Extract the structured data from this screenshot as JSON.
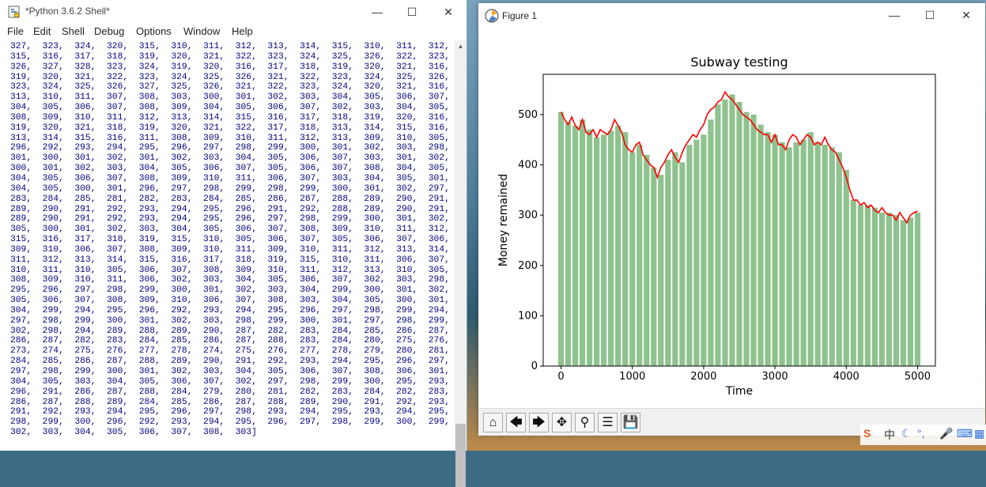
{
  "shell": {
    "title": "*Python 3.6.2 Shell*",
    "menu": [
      "File",
      "Edit",
      "Shell",
      "Debug",
      "Options",
      "Window",
      "Help"
    ],
    "output_lines": [
      "327,  323,  324,  320,  315,  310,  311,  312,  313,  314,  315,  310,  311,  312,  313,  314,",
      "315,  316,  317,  318,  319,  320,  321,  322,  323,  324,  325,  326,  322,  323,  324,  325,",
      "326,  327,  328,  323,  324,  319,  320,  316,  317,  318,  319,  320,  321,  316,  317,  318,",
      "319,  320,  321,  322,  323,  324,  325,  326,  321,  322,  323,  324,  325,  326,  327,  328,",
      "323,  324,  325,  326,  327,  325,  326,  321,  322,  323,  324,  320,  321,  316,  317,  318,",
      "313,  310,  311,  307,  308,  303,  300,  301,  302,  303,  304,  305,  306,  307,  302,  303,",
      "304,  305,  306,  307,  308,  309,  304,  305,  306,  307,  302,  303,  304,  305,  306,  307,",
      "308,  309,  310,  311,  312,  313,  314,  315,  316,  317,  318,  319,  320,  316,  317,  318,",
      "319,  320,  321,  318,  319,  320,  321,  322,  317,  318,  313,  314,  315,  316,  317,  312,",
      "313,  314,  315,  316,  311,  308,  309,  310,  311,  312,  313,  309,  310,  305,  300,  295,",
      "296,  292,  293,  294,  295,  296,  297,  298,  299,  300,  301,  302,  303,  298,  299,  300,",
      "301,  300,  301,  302,  301,  302,  303,  304,  305,  306,  307,  303,  301,  302,  298,  299,",
      "300,  301,  302,  303,  304,  305,  306,  307,  305,  306,  307,  308,  304,  305,  306,  303,",
      "304,  305,  306,  307,  308,  309,  310,  311,  306,  307,  303,  304,  305,  301,  302,  303,",
      "304,  305,  300,  301,  296,  297,  298,  299,  298,  299,  300,  301,  302,  297,  293,  288,",
      "283,  284,  285,  281,  282,  283,  284,  285,  286,  287,  288,  289,  290,  291,  292,  288,",
      "289,  290,  291,  292,  293,  294,  295,  296,  291,  292,  288,  289,  290,  291,  287,  288,",
      "289,  290,  291,  292,  293,  294,  295,  296,  297,  298,  299,  300,  301,  302,  303,  304,",
      "305,  300,  301,  302,  303,  304,  305,  306,  307,  308,  309,  310,  311,  312,  313,  314,",
      "315,  316,  317,  318,  319,  315,  310,  305,  306,  307,  305,  306,  307,  306,  307,  308,",
      "309,  310,  306,  307,  308,  309,  310,  311,  309,  310,  311,  312,  313,  314,  315,  316,",
      "311,  312,  313,  314,  315,  316,  317,  318,  319,  315,  310,  311,  306,  307,  308,  309,",
      "310,  311,  310,  305,  306,  307,  308,  309,  310,  311,  312,  313,  310,  305,  306,  307,",
      "308,  309,  310,  311,  306,  302,  303,  304,  305,  306,  307,  302,  303,  298,  293,  294,",
      "295,  296,  297,  298,  299,  300,  301,  302,  303,  304,  299,  300,  301,  302,  303,  304,",
      "305,  306,  307,  308,  309,  310,  306,  307,  308,  303,  304,  305,  300,  301,  302,  303,",
      "304,  299,  294,  295,  296,  292,  293,  294,  295,  296,  297,  298,  299,  294,  295,  296,",
      "297,  298,  299,  300,  301,  302,  303,  298,  299,  300,  301,  297,  298,  299,  300,  301,",
      "302,  298,  294,  289,  288,  289,  290,  287,  282,  283,  284,  285,  286,  287,  288,  289,",
      "286,  287,  282,  283,  284,  285,  286,  287,  288,  283,  284,  280,  275,  276,  271,  272,",
      "273,  274,  275,  276,  277,  278,  274,  275,  276,  277,  278,  279,  280,  281,  282,  283,",
      "284,  285,  286,  287,  288,  289,  290,  291,  292,  293,  294,  295,  296,  297,  298,  296,",
      "297,  298,  299,  300,  301,  302,  303,  304,  305,  306,  307,  308,  306,  301,  302,  303,",
      "304,  305,  303,  304,  305,  306,  307,  302,  297,  298,  299,  300,  295,  293,  294,  295,",
      "296,  291,  286,  287,  288,  284,  279,  280,  281,  282,  283,  284,  282,  283,  284,  285,",
      "286,  287,  288,  289,  284,  285,  286,  287,  288,  289,  290,  291,  292,  293,  294,  290,",
      "291,  292,  293,  294,  295,  296,  297,  298,  293,  294,  295,  293,  294,  295,  296,  297,",
      "298,  299,  300,  296,  292,  293,  294,  295,  296,  297,  298,  299,  300,  299,  300,  301,",
      "302,  303,  304,  305,  306,  307,  308,  303]"
    ]
  },
  "figure": {
    "title": "Figure 1",
    "toolbar": [
      "home-icon",
      "back-arrow-icon",
      "forward-arrow-icon",
      "pan-icon",
      "zoom-icon",
      "configure-subplots-icon",
      "save-icon"
    ]
  },
  "chart_data": {
    "type": "bar",
    "title": "Subway testing",
    "xlabel": "Time",
    "ylabel": "Money remained",
    "xlim": [
      -250,
      5250
    ],
    "ylim": [
      0,
      580
    ],
    "xticks": [
      0,
      1000,
      2000,
      3000,
      4000,
      5000
    ],
    "yticks": [
      0,
      100,
      200,
      300,
      400,
      500
    ],
    "bar_color": "#8ec28e",
    "line_color": "#ff0000",
    "bar_x": [
      0,
      100,
      200,
      300,
      400,
      500,
      600,
      700,
      800,
      900,
      1000,
      1100,
      1200,
      1300,
      1400,
      1500,
      1600,
      1700,
      1800,
      1900,
      2000,
      2100,
      2200,
      2300,
      2400,
      2500,
      2600,
      2700,
      2800,
      2900,
      3000,
      3100,
      3200,
      3300,
      3400,
      3500,
      3600,
      3700,
      3800,
      3900,
      4000,
      4100,
      4200,
      4300,
      4400,
      4500,
      4600,
      4700,
      4800,
      4900,
      5000
    ],
    "bar_values": [
      505,
      485,
      478,
      490,
      470,
      455,
      460,
      468,
      478,
      465,
      425,
      440,
      420,
      395,
      380,
      410,
      425,
      405,
      440,
      450,
      460,
      490,
      520,
      530,
      540,
      525,
      505,
      500,
      480,
      465,
      460,
      445,
      435,
      445,
      450,
      465,
      445,
      440,
      435,
      425,
      390,
      330,
      320,
      320,
      315,
      305,
      305,
      300,
      290,
      295,
      305
    ],
    "line_points": [
      [
        0,
        505
      ],
      [
        50,
        490
      ],
      [
        100,
        480
      ],
      [
        150,
        495
      ],
      [
        200,
        478
      ],
      [
        250,
        470
      ],
      [
        300,
        490
      ],
      [
        350,
        465
      ],
      [
        400,
        460
      ],
      [
        450,
        470
      ],
      [
        500,
        455
      ],
      [
        550,
        470
      ],
      [
        600,
        465
      ],
      [
        650,
        460
      ],
      [
        700,
        470
      ],
      [
        750,
        490
      ],
      [
        800,
        478
      ],
      [
        850,
        465
      ],
      [
        900,
        440
      ],
      [
        950,
        430
      ],
      [
        1000,
        425
      ],
      [
        1050,
        440
      ],
      [
        1100,
        445
      ],
      [
        1150,
        420
      ],
      [
        1200,
        410
      ],
      [
        1250,
        400
      ],
      [
        1300,
        395
      ],
      [
        1350,
        375
      ],
      [
        1400,
        395
      ],
      [
        1450,
        405
      ],
      [
        1500,
        420
      ],
      [
        1550,
        430
      ],
      [
        1600,
        415
      ],
      [
        1650,
        405
      ],
      [
        1700,
        425
      ],
      [
        1750,
        440
      ],
      [
        1800,
        450
      ],
      [
        1850,
        460
      ],
      [
        1900,
        455
      ],
      [
        1950,
        470
      ],
      [
        2000,
        480
      ],
      [
        2050,
        500
      ],
      [
        2100,
        510
      ],
      [
        2150,
        515
      ],
      [
        2200,
        525
      ],
      [
        2250,
        530
      ],
      [
        2300,
        545
      ],
      [
        2350,
        535
      ],
      [
        2400,
        530
      ],
      [
        2450,
        520
      ],
      [
        2500,
        510
      ],
      [
        2550,
        500
      ],
      [
        2600,
        495
      ],
      [
        2650,
        490
      ],
      [
        2700,
        480
      ],
      [
        2750,
        470
      ],
      [
        2800,
        465
      ],
      [
        2850,
        460
      ],
      [
        2900,
        460
      ],
      [
        2950,
        445
      ],
      [
        3000,
        460
      ],
      [
        3050,
        440
      ],
      [
        3100,
        440
      ],
      [
        3150,
        430
      ],
      [
        3200,
        450
      ],
      [
        3250,
        460
      ],
      [
        3300,
        455
      ],
      [
        3350,
        440
      ],
      [
        3400,
        450
      ],
      [
        3450,
        460
      ],
      [
        3500,
        455
      ],
      [
        3550,
        440
      ],
      [
        3600,
        445
      ],
      [
        3650,
        440
      ],
      [
        3700,
        455
      ],
      [
        3750,
        440
      ],
      [
        3800,
        430
      ],
      [
        3850,
        425
      ],
      [
        3900,
        410
      ],
      [
        3950,
        395
      ],
      [
        4000,
        375
      ],
      [
        4050,
        350
      ],
      [
        4100,
        330
      ],
      [
        4150,
        330
      ],
      [
        4200,
        320
      ],
      [
        4250,
        325
      ],
      [
        4300,
        315
      ],
      [
        4350,
        320
      ],
      [
        4400,
        310
      ],
      [
        4450,
        305
      ],
      [
        4500,
        315
      ],
      [
        4550,
        305
      ],
      [
        4600,
        300
      ],
      [
        4650,
        300
      ],
      [
        4700,
        290
      ],
      [
        4750,
        305
      ],
      [
        4800,
        295
      ],
      [
        4850,
        285
      ],
      [
        4900,
        300
      ],
      [
        4950,
        305
      ],
      [
        5000,
        308
      ]
    ]
  }
}
